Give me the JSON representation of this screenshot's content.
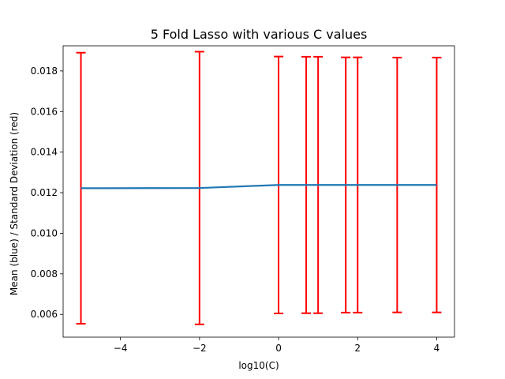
{
  "chart_data": {
    "type": "line",
    "title": "5 Fold Lasso with various C values",
    "xlabel": "log10(C)",
    "ylabel": "Mean (blue) / Standard Deviation (red)",
    "xlim": [
      -5.45,
      4.45
    ],
    "ylim": [
      0.00488,
      0.01924
    ],
    "x_ticks": [
      -4,
      -2,
      0,
      2,
      4
    ],
    "x_tick_labels": [
      "−4",
      "−2",
      "0",
      "2",
      "4"
    ],
    "y_ticks": [
      0.006,
      0.008,
      0.01,
      0.012,
      0.014,
      0.016,
      0.018
    ],
    "y_tick_labels": [
      "0.006",
      "0.008",
      "0.010",
      "0.012",
      "0.014",
      "0.016",
      "0.018"
    ],
    "grid": false,
    "series": [
      {
        "x": [
          -5,
          -2,
          0,
          0.699,
          1,
          1.699,
          2,
          3,
          4
        ],
        "y": [
          0.01222,
          0.01223,
          0.01238,
          0.01238,
          0.01238,
          0.01238,
          0.01238,
          0.01238,
          0.01238
        ],
        "err": [
          0.00668,
          0.00672,
          0.00633,
          0.00632,
          0.00632,
          0.00629,
          0.00629,
          0.00628,
          0.00628
        ],
        "line_color": "#1f77b4",
        "err_color": "#ff0000"
      }
    ]
  }
}
